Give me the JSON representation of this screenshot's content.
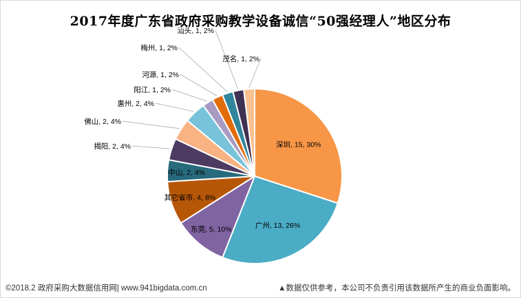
{
  "chart_data": {
    "type": "pie",
    "title": "2017年度广东省政府采购教学设备诚信“50强经理人”地区分布",
    "slices": [
      {
        "label": "深圳",
        "value": 15,
        "percent": "30%",
        "color": "#F79646"
      },
      {
        "label": "广州",
        "value": 13,
        "percent": "26%",
        "color": "#4BACC6"
      },
      {
        "label": "东莞",
        "value": 5,
        "percent": "10%",
        "color": "#8064A2"
      },
      {
        "label": "其它省市",
        "value": 4,
        "percent": "8%",
        "color": "#B65708"
      },
      {
        "label": "中山",
        "value": 2,
        "percent": "4%",
        "color": "#276A7C"
      },
      {
        "label": "揭阳",
        "value": 2,
        "percent": "4%",
        "color": "#4D3B62"
      },
      {
        "label": "佛山",
        "value": 2,
        "percent": "4%",
        "color": "#F9B282"
      },
      {
        "label": "惠州",
        "value": 2,
        "percent": "4%",
        "color": "#78C3D9"
      },
      {
        "label": "阳江",
        "value": 1,
        "percent": "2%",
        "color": "#A89BC2"
      },
      {
        "label": "河源",
        "value": 1,
        "percent": "2%",
        "color": "#E36C0A"
      },
      {
        "label": "梅州",
        "value": 1,
        "percent": "2%",
        "color": "#31859C"
      },
      {
        "label": "汕头",
        "value": 1,
        "percent": "2%",
        "color": "#3F3152"
      },
      {
        "label": "茂名",
        "value": 1,
        "percent": "2%",
        "color": "#FAC090"
      }
    ]
  },
  "footer": {
    "source": "©2018.2 政府采购大数据信用网| www.941bigdata.com.cn",
    "disclaimer": "▲数据仅供参考，本公司不负责引用该数据所产生的商业负面影响。"
  }
}
